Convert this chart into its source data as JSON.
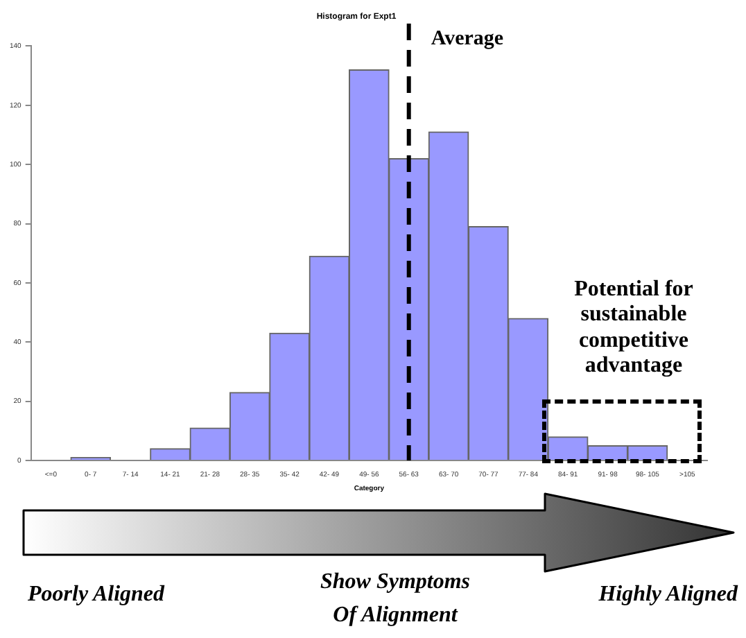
{
  "chart_data": {
    "type": "bar",
    "title": "Histogram for Expt1",
    "xlabel": "Category",
    "categories": [
      "<=0",
      "0- 7",
      "7- 14",
      "14- 21",
      "21- 28",
      "28- 35",
      "35- 42",
      "42- 49",
      "49- 56",
      "56- 63",
      "63- 70",
      "70- 77",
      "77- 84",
      "84- 91",
      "91- 98",
      "98- 105",
      ">105"
    ],
    "values": [
      0,
      1,
      0,
      4,
      11,
      23,
      43,
      69,
      132,
      102,
      111,
      79,
      48,
      8,
      5,
      5,
      0
    ],
    "color": "#9999ff",
    "ylim": [
      0,
      140
    ],
    "yticks": [
      0,
      20,
      40,
      60,
      80,
      100,
      120,
      140
    ],
    "grid": false,
    "legend": false,
    "ref_lines": [
      {
        "axis": "x",
        "value": "56- 63",
        "label": "Average",
        "color": "#000000",
        "line_style": "dashed"
      }
    ],
    "annotations": [
      "Potential for sustainable competitive advantage",
      "Poorly Aligned",
      "Show Symptoms Of Alignment",
      "Highly Aligned"
    ]
  }
}
